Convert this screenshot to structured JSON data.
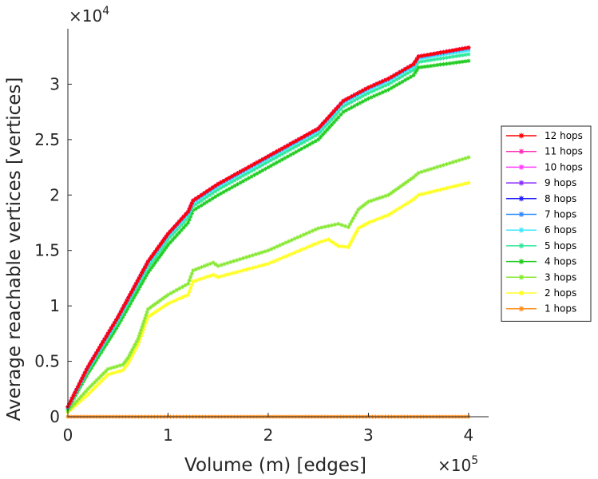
{
  "chart_data": {
    "type": "line",
    "title": "",
    "xlabel": "Volume (m) [edges]",
    "ylabel": "Average reachable vertices [vertices]",
    "x_multiplier_label": "×10",
    "x_multiplier_exp": "5",
    "y_multiplier_label": "×10",
    "y_multiplier_exp": "4",
    "xlim": [
      0,
      420000
    ],
    "ylim": [
      0,
      35000
    ],
    "x_ticks": [
      0,
      100000,
      200000,
      300000,
      400000
    ],
    "x_tick_labels": [
      "0",
      "1",
      "2",
      "3",
      "4"
    ],
    "y_ticks": [
      0,
      5000,
      10000,
      15000,
      20000,
      25000,
      30000
    ],
    "y_tick_labels": [
      "0",
      "0.5",
      "1",
      "1.5",
      "2",
      "2.5",
      "3"
    ],
    "grid": false,
    "legend_position": "right",
    "marker": "*",
    "series": [
      {
        "name": "12 hops",
        "color": "#ff0000",
        "x": [
          0,
          20000,
          50000,
          80000,
          100000,
          120000,
          125000,
          150000,
          200000,
          250000,
          270000,
          275000,
          300000,
          320000,
          345000,
          350000,
          400000
        ],
        "y": [
          900,
          4500,
          9000,
          14000,
          16500,
          18500,
          19500,
          21000,
          23500,
          26000,
          28000,
          28500,
          29700,
          30500,
          31800,
          32500,
          33300
        ]
      },
      {
        "name": "11 hops",
        "color": "#ff2db4",
        "x": [
          0,
          20000,
          50000,
          80000,
          100000,
          120000,
          125000,
          150000,
          200000,
          250000,
          270000,
          275000,
          300000,
          320000,
          345000,
          350000,
          400000
        ],
        "y": [
          900,
          4500,
          9000,
          14000,
          16500,
          18500,
          19500,
          21000,
          23500,
          26000,
          28000,
          28500,
          29700,
          30500,
          31800,
          32500,
          33300
        ]
      },
      {
        "name": "10 hops",
        "color": "#ff3dff",
        "x": [
          0,
          20000,
          50000,
          80000,
          100000,
          120000,
          125000,
          150000,
          200000,
          250000,
          270000,
          275000,
          300000,
          320000,
          345000,
          350000,
          400000
        ],
        "y": [
          900,
          4500,
          9000,
          14000,
          16500,
          18500,
          19500,
          21000,
          23500,
          26000,
          28000,
          28500,
          29700,
          30500,
          31800,
          32500,
          33300
        ]
      },
      {
        "name": "9 hops",
        "color": "#8a2bff",
        "x": [
          0,
          20000,
          50000,
          80000,
          100000,
          120000,
          125000,
          150000,
          200000,
          250000,
          270000,
          275000,
          300000,
          320000,
          345000,
          350000,
          400000
        ],
        "y": [
          900,
          4500,
          9000,
          14000,
          16500,
          18500,
          19500,
          21000,
          23500,
          26000,
          28000,
          28500,
          29700,
          30500,
          31800,
          32500,
          33300
        ]
      },
      {
        "name": "8 hops",
        "color": "#1b1bff",
        "x": [
          0,
          20000,
          50000,
          80000,
          100000,
          120000,
          125000,
          150000,
          200000,
          250000,
          270000,
          275000,
          300000,
          320000,
          345000,
          350000,
          400000
        ],
        "y": [
          900,
          4500,
          9000,
          14000,
          16500,
          18500,
          19500,
          21000,
          23500,
          26000,
          28000,
          28500,
          29700,
          30500,
          31800,
          32500,
          33300
        ]
      },
      {
        "name": "7 hops",
        "color": "#2e8bff",
        "x": [
          0,
          20000,
          50000,
          80000,
          100000,
          120000,
          125000,
          150000,
          200000,
          250000,
          270000,
          275000,
          300000,
          320000,
          345000,
          350000,
          400000
        ],
        "y": [
          880,
          4450,
          8950,
          13950,
          16450,
          18450,
          19450,
          20950,
          23450,
          25950,
          27950,
          28450,
          29650,
          30450,
          31750,
          32450,
          33250
        ]
      },
      {
        "name": "6 hops",
        "color": "#3fe6ff",
        "x": [
          0,
          20000,
          50000,
          80000,
          100000,
          120000,
          125000,
          150000,
          200000,
          250000,
          270000,
          275000,
          300000,
          320000,
          345000,
          350000,
          400000
        ],
        "y": [
          850,
          4350,
          8800,
          13800,
          16300,
          18300,
          19300,
          20800,
          23300,
          25800,
          27800,
          28300,
          29500,
          30300,
          31600,
          32300,
          33050
        ]
      },
      {
        "name": "5 hops",
        "color": "#2ee89a",
        "x": [
          0,
          20000,
          50000,
          80000,
          100000,
          120000,
          125000,
          150000,
          200000,
          250000,
          270000,
          275000,
          300000,
          320000,
          345000,
          350000,
          400000
        ],
        "y": [
          800,
          4200,
          8600,
          13500,
          16000,
          18000,
          19000,
          20500,
          23000,
          25500,
          27500,
          28000,
          29200,
          30000,
          31300,
          32000,
          32700
        ]
      },
      {
        "name": "4 hops",
        "color": "#20cc20",
        "x": [
          0,
          20000,
          50000,
          80000,
          100000,
          120000,
          125000,
          150000,
          200000,
          250000,
          270000,
          275000,
          300000,
          320000,
          345000,
          350000,
          400000
        ],
        "y": [
          700,
          3900,
          8200,
          13000,
          15500,
          17500,
          18600,
          20000,
          22500,
          25000,
          27000,
          27500,
          28700,
          29500,
          30800,
          31500,
          32100
        ]
      },
      {
        "name": "3 hops",
        "color": "#88e833",
        "x": [
          0,
          20000,
          40000,
          55000,
          60000,
          70000,
          80000,
          100000,
          120000,
          125000,
          145000,
          150000,
          200000,
          250000,
          270000,
          280000,
          290000,
          300000,
          320000,
          345000,
          350000,
          400000
        ],
        "y": [
          500,
          2500,
          4300,
          4700,
          5300,
          7000,
          9700,
          11000,
          12000,
          13200,
          13900,
          13600,
          15000,
          17000,
          17400,
          17100,
          18700,
          19400,
          20000,
          21600,
          22000,
          23400
        ]
      },
      {
        "name": "2 hops",
        "color": "#ffff20",
        "x": [
          0,
          20000,
          40000,
          55000,
          60000,
          70000,
          80000,
          100000,
          120000,
          125000,
          145000,
          150000,
          200000,
          250000,
          260000,
          270000,
          280000,
          290000,
          300000,
          320000,
          345000,
          350000,
          400000
        ],
        "y": [
          400,
          2000,
          3800,
          4200,
          4800,
          6500,
          9000,
          10200,
          11000,
          12200,
          12800,
          12600,
          13800,
          15700,
          16000,
          15400,
          15300,
          17000,
          17500,
          18200,
          19600,
          20000,
          21100
        ]
      },
      {
        "name": "1 hops",
        "color": "#ff8c1a",
        "x": [
          0,
          400000
        ],
        "y": [
          0,
          0
        ]
      }
    ]
  }
}
